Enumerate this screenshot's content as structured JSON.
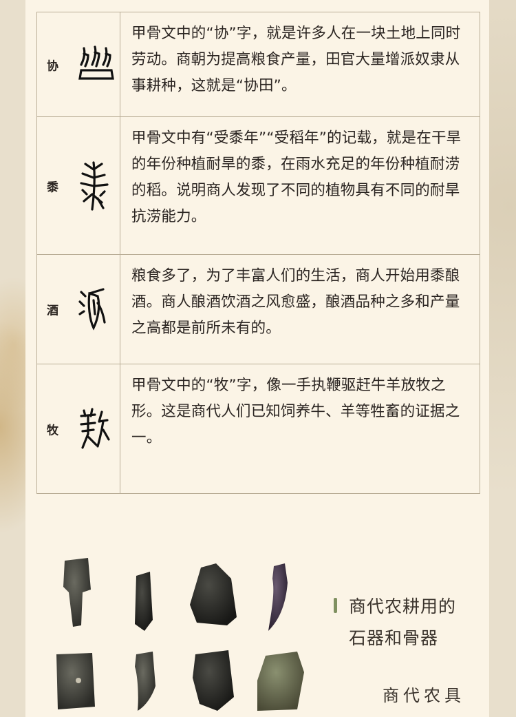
{
  "rows": [
    {
      "glyph": "协",
      "text": "甲骨文中的“协”字，就是许多人在一块土地上同时劳动。商朝为提高粮食产量，田官大量增派奴隶从事耕种，这就是“协田”。",
      "glyph_icon": "oracle-xie-icon"
    },
    {
      "glyph": "黍",
      "text": "甲骨文中有“受黍年”“受稻年”的记载，就是在干旱的年份种植耐旱的黍，在雨水充足的年份种植耐涝的稻。说明商人发现了不同的植物具有不同的耐旱抗涝能力。",
      "glyph_icon": "oracle-shu-icon"
    },
    {
      "glyph": "酒",
      "text": "粮食多了，为了丰富人们的生活，商人开始用黍酿酒。商人酿酒饮酒之风愈盛，酿酒品种之多和产量之高都是前所未有的。",
      "glyph_icon": "oracle-jiu-icon"
    },
    {
      "glyph": "牧",
      "text": "甲骨文中的“牧”字，像一手执鞭驱赶牛羊放牧之形。这是商代人们已知饲养牛、羊等牲畜的证据之一。",
      "glyph_icon": "oracle-mu-icon"
    }
  ],
  "caption": {
    "line1": "商代农耕用的",
    "line2": "石器和骨器"
  },
  "sub_caption": "商代农具",
  "colors": {
    "panel": "#fbf4e6",
    "border": "#b9ad96",
    "accent_bar": "#7f9060"
  }
}
